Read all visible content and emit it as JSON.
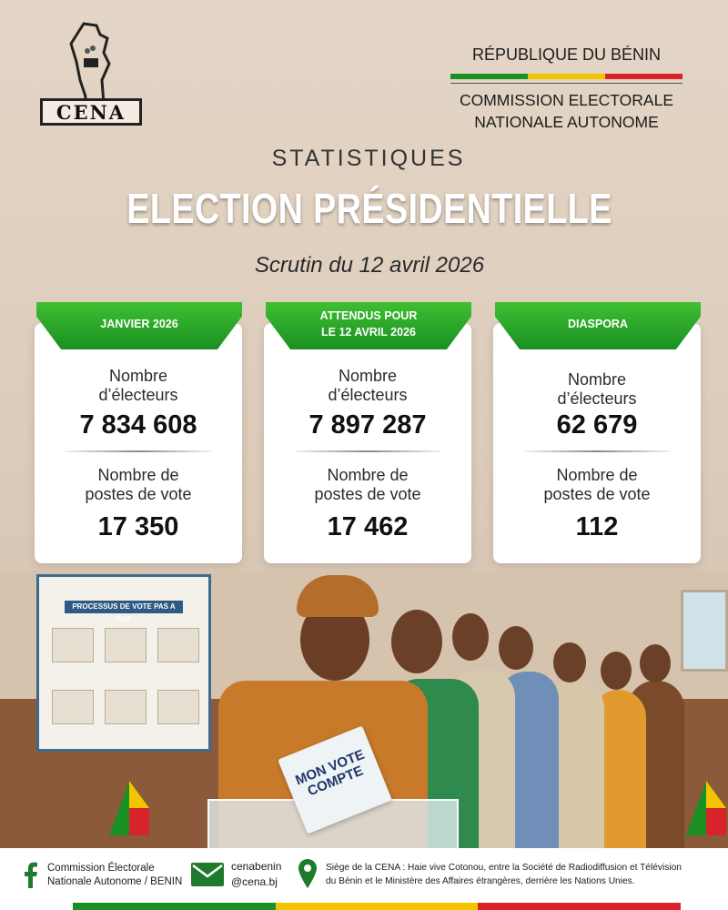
{
  "header": {
    "logo_text": "CENA",
    "republic": "RÉPUBLIQUE DU BÉNIN",
    "commission_line1": "COMMISSION ELECTORALE",
    "commission_line2": "NATIONALE AUTONOME"
  },
  "titles": {
    "section": "STATISTIQUES",
    "main": "ELECTION PRÉSIDENTIELLE",
    "subtitle": "Scrutin du 12 avril 2026"
  },
  "cards": [
    {
      "tab": "JANVIER 2026",
      "voters_label_1": "Nombre",
      "voters_label_2": "d’électeurs",
      "voters_value": "7 834 608",
      "stations_label_1": "Nombre de",
      "stations_label_2": "postes de vote",
      "stations_value": "17 350"
    },
    {
      "tab_line1": "ATTENDUS POUR",
      "tab_line2": "LE 12 AVRIL 2026",
      "voters_label_1": "Nombre",
      "voters_label_2": "d’électeurs",
      "voters_value": "7 897 287",
      "stations_label_1": "Nombre de",
      "stations_label_2": "postes de vote",
      "stations_value": "17 462"
    },
    {
      "tab": "DIASPORA",
      "voters_label_1": "Nombre",
      "voters_label_2": "d’électeurs",
      "voters_value": "62 679",
      "stations_label_1": "Nombre de",
      "stations_label_2": "postes de vote",
      "stations_value": "112"
    }
  ],
  "photo": {
    "poster_title": "PROCESSUS DE VOTE PAS A PAS",
    "ballot_text_1": "MON VOTE",
    "ballot_text_2": "COMPTE"
  },
  "footer": {
    "facebook_line1": "Commission Électorale",
    "facebook_line2": "Nationale Autonome / BENIN",
    "email_line1": "cenabenin",
    "email_line2": "@cena.bj",
    "address_line1": "Siège de la CENA : Haie vive Cotonou, entre la Société de Radiodiffusion et Télévision",
    "address_line2": "du Bénin et le Ministère des Affaires étrangères, derrière les Nations Unies."
  },
  "colors": {
    "green": "#1a8f22",
    "yellow": "#f2c500",
    "red": "#d8232a",
    "icon_green": "#1f7a2e"
  },
  "icons": [
    "facebook-icon",
    "mail-icon",
    "location-pin-icon"
  ]
}
